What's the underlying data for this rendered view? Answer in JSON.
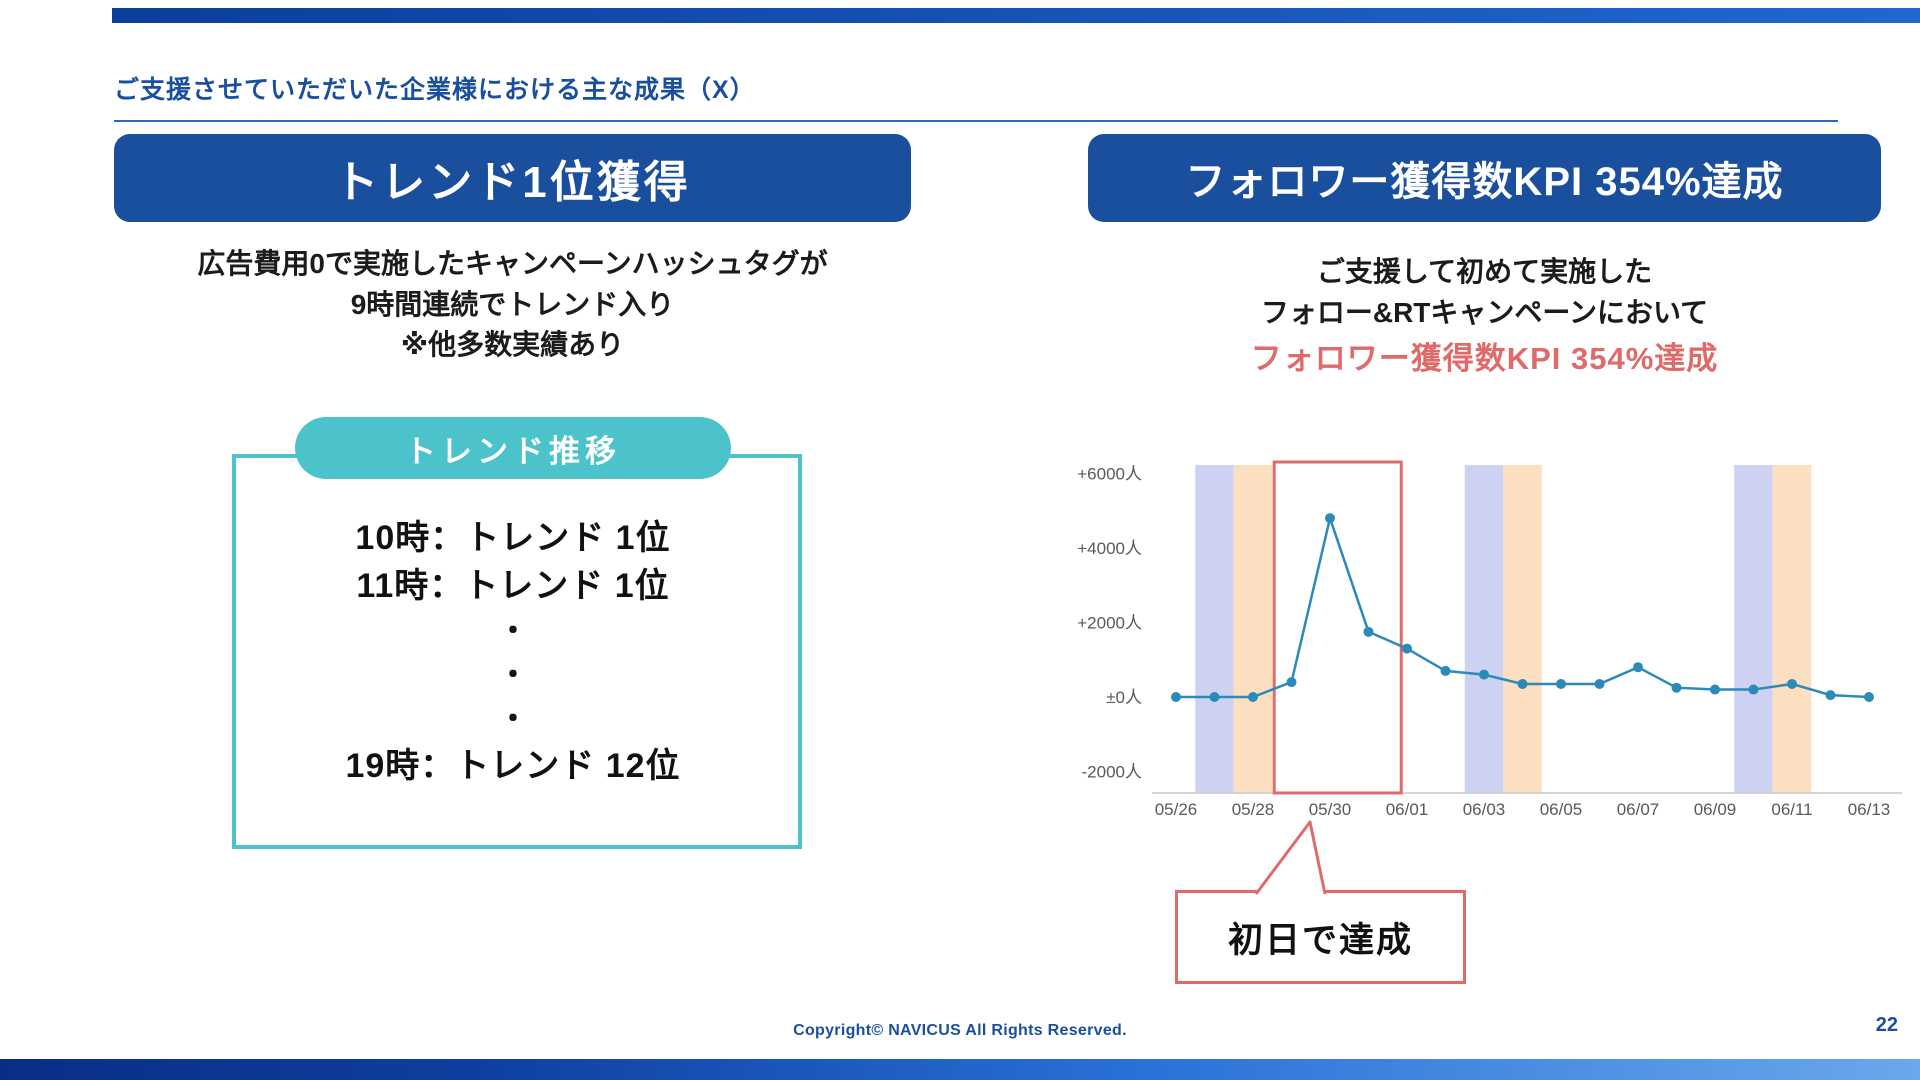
{
  "title": "ご支援させていただいた企業様における主な成果（X）",
  "footer": {
    "copyright": "Copyright© NAVICUS All Rights Reserved.",
    "page_number": "22"
  },
  "left_panel": {
    "header": "トレンド1位獲得",
    "description_lines": [
      "広告費用0で実施したキャンペーンハッシュタグが",
      "9時間連続でトレンド入り",
      "※他多数実績あり"
    ],
    "trend_box": {
      "label": "トレンド推移",
      "lines": [
        "10時：トレンド 1位",
        "11時：トレンド  1位",
        "・",
        "・",
        "・",
        "19時：トレンド 12位"
      ]
    }
  },
  "right_panel": {
    "header": "フォロワー獲得数KPI 354%達成",
    "description_lines": [
      "ご支援して初めて実施した",
      "フォロー&RTキャンペーンにおいて"
    ],
    "highlight_line": "フォロワー獲得数KPI 354%達成",
    "callout": "初日で達成"
  },
  "colors": {
    "primary_blue": "#1a4f9e",
    "teal": "#4cc3ca",
    "red": "#e06a6a",
    "line_blue": "#2b8ab8",
    "band_purple": "#cdd2f3",
    "band_orange": "#fcdec0"
  },
  "chart_data": {
    "type": "line",
    "title": "",
    "xlabel": "",
    "ylabel": "",
    "x": [
      "05/26",
      "05/27",
      "05/28",
      "05/29",
      "05/30",
      "05/31",
      "06/01",
      "06/02",
      "06/03",
      "06/04",
      "06/05",
      "06/06",
      "06/07",
      "06/08",
      "06/09",
      "06/10",
      "06/11",
      "06/12",
      "06/13"
    ],
    "values": [
      0,
      0,
      0,
      400,
      4800,
      1750,
      1300,
      700,
      600,
      350,
      350,
      350,
      800,
      250,
      200,
      200,
      350,
      50,
      0
    ],
    "ylim": [
      -2000,
      6000
    ],
    "yticks": [
      {
        "v": 6000,
        "label": "+6000人"
      },
      {
        "v": 4000,
        "label": "+4000人"
      },
      {
        "v": 2000,
        "label": "+2000人"
      },
      {
        "v": 0,
        "label": "±0人"
      },
      {
        "v": -2000,
        "label": "-2000人"
      }
    ],
    "x_tick_every": 2,
    "line_color": "#2b8ab8",
    "grid": false,
    "legend": "none",
    "weekend_bands": [
      {
        "index": 1,
        "color": "#cdd2f3"
      },
      {
        "index": 2,
        "color": "#fcdec0"
      },
      {
        "index": 8,
        "color": "#cdd2f3"
      },
      {
        "index": 9,
        "color": "#fcdec0"
      },
      {
        "index": 15,
        "color": "#cdd2f3"
      },
      {
        "index": 16,
        "color": "#fcdec0"
      }
    ],
    "highlight_box": {
      "from_index": 2.55,
      "to_index": 5.85,
      "color": "#e06a6a"
    }
  }
}
